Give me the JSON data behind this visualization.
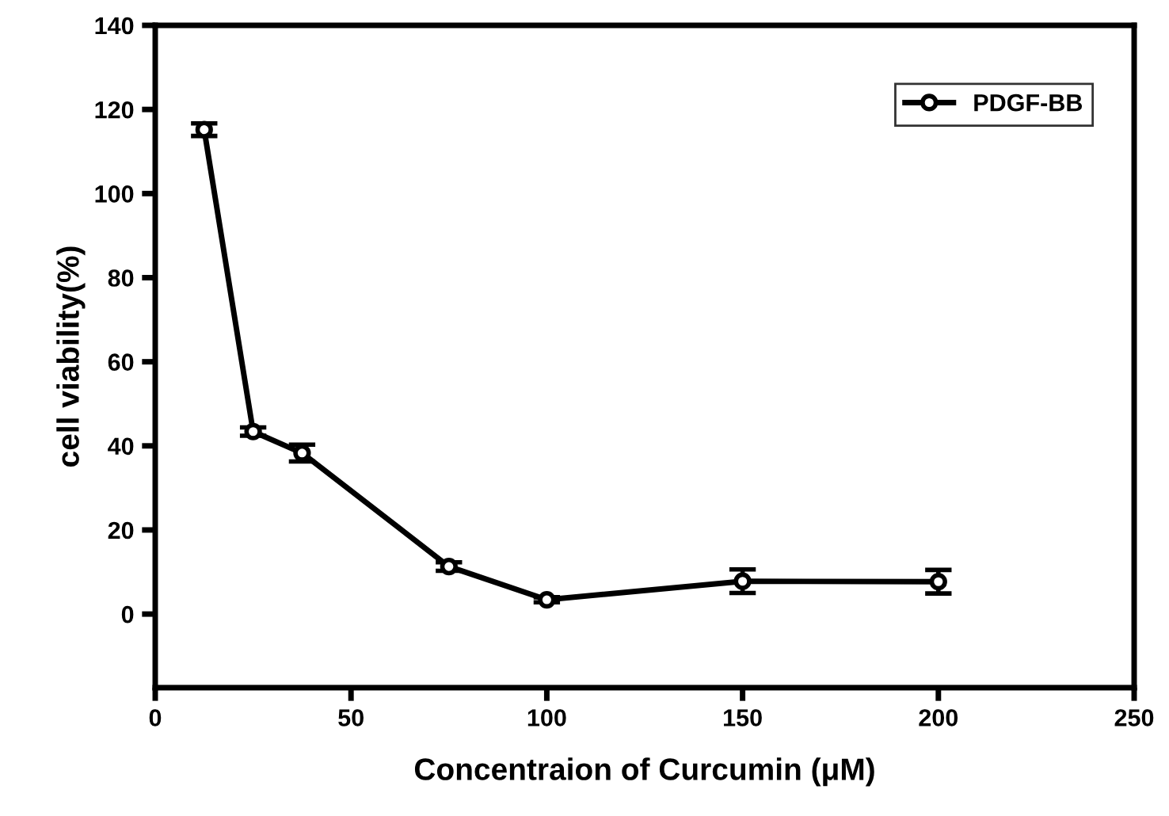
{
  "chart_data": {
    "type": "line",
    "xlabel": "Concentraion of Curcumin (μM)",
    "ylabel": "cell viability(%)",
    "x": [
      12.5,
      25,
      37.5,
      75,
      100,
      150,
      200
    ],
    "series": [
      {
        "name": "PDGF-BB",
        "color": "#000000",
        "values": [
          115.2,
          43.4,
          38.3,
          11.3,
          3.4,
          7.8,
          7.7
        ],
        "errors": [
          1.5,
          1.0,
          2.0,
          1.0,
          0.6,
          2.8,
          2.8
        ]
      }
    ],
    "xlim": [
      0,
      250
    ],
    "xticks": [
      0,
      50,
      100,
      150,
      200,
      250
    ],
    "ylim": [
      -17.5,
      140
    ],
    "yticks": [
      0,
      20,
      40,
      60,
      80,
      100,
      120,
      140
    ],
    "marker": "circle",
    "line_style": "solid",
    "legend": "top right",
    "grid": false
  }
}
